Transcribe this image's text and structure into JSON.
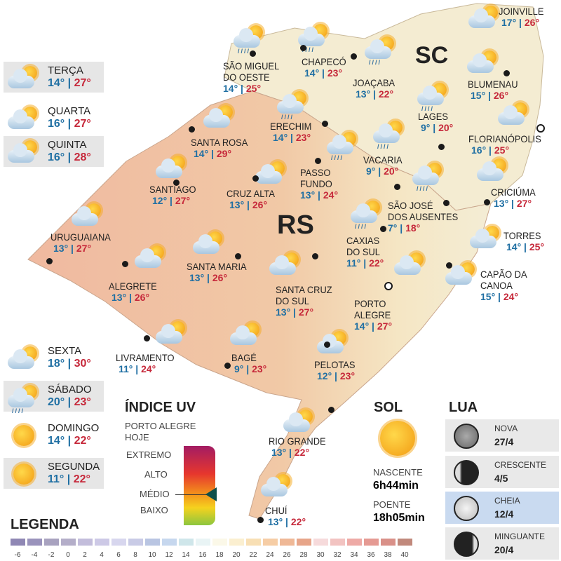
{
  "regions": {
    "sc": "SC",
    "rs": "RS"
  },
  "cities": [
    {
      "name": "SÃO MIGUEL",
      "name2": "DO OESTE",
      "min": "14°",
      "max": "25°",
      "icon": "sun-cloud-rain"
    },
    {
      "name": "CHAPECÓ",
      "min": "14°",
      "max": "23°",
      "icon": "sun-cloud-rain"
    },
    {
      "name": "JOAÇABA",
      "min": "13°",
      "max": "22°",
      "icon": "sun-cloud-rain"
    },
    {
      "name": "JOINVILLE",
      "min": "17°",
      "max": "26°",
      "icon": "sun-cloud"
    },
    {
      "name": "BLUMENAU",
      "min": "15°",
      "max": "26°",
      "icon": "sun-cloud"
    },
    {
      "name": "LAGES",
      "min": "9°",
      "max": "20°",
      "icon": "sun-cloud-rain"
    },
    {
      "name": "FLORIANÓPOLIS",
      "min": "16°",
      "max": "25°",
      "icon": "sun-cloud"
    },
    {
      "name": "ERECHIM",
      "min": "14°",
      "max": "23°",
      "icon": "sun-cloud-rain"
    },
    {
      "name": "SANTA ROSA",
      "min": "14°",
      "max": "29°",
      "icon": "sun-cloud"
    },
    {
      "name": "PASSO",
      "name2": "FUNDO",
      "min": "13°",
      "max": "24°",
      "icon": "sun-cloud-rain"
    },
    {
      "name": "VACARIA",
      "min": "9°",
      "max": "20°",
      "icon": "sun-cloud-rain"
    },
    {
      "name": "CRUZ ALTA",
      "min": "13°",
      "max": "26°",
      "icon": "sun-cloud"
    },
    {
      "name": "SANTIAGO",
      "min": "12°",
      "max": "27°",
      "icon": "sun-cloud"
    },
    {
      "name": "SÃO JOSÉ",
      "name2": "DOS AUSENTES",
      "min": "7°",
      "max": "18°",
      "icon": "sun-cloud-rain"
    },
    {
      "name": "CRICIÚMA",
      "min": "13°",
      "max": "27°",
      "icon": "sun-cloud"
    },
    {
      "name": "CAXIAS",
      "name2": "DO SUL",
      "min": "11°",
      "max": "22°",
      "icon": "sun-cloud-rain"
    },
    {
      "name": "TORRES",
      "min": "14°",
      "max": "25°",
      "icon": "sun-cloud"
    },
    {
      "name": "URUGUAIANA",
      "min": "13°",
      "max": "27°",
      "icon": "sun-cloud"
    },
    {
      "name": "ALEGRETE",
      "min": "13°",
      "max": "26°",
      "icon": "sun-cloud"
    },
    {
      "name": "SANTA MARIA",
      "min": "13°",
      "max": "26°",
      "icon": "sun-cloud"
    },
    {
      "name": "SANTA CRUZ",
      "name2": "DO SUL",
      "min": "13°",
      "max": "27°",
      "icon": "sun-cloud"
    },
    {
      "name": "CAPÃO DA",
      "name2": "CANOA",
      "min": "15°",
      "max": "24°",
      "icon": "sun-cloud"
    },
    {
      "name": "PORTO",
      "name2": "ALEGRE",
      "min": "14°",
      "max": "27°",
      "icon": "sun-cloud"
    },
    {
      "name": "LIVRAMENTO",
      "min": "11°",
      "max": "24°",
      "icon": "sun-cloud"
    },
    {
      "name": "BAGÉ",
      "min": "9°",
      "max": "23°",
      "icon": "sun-cloud"
    },
    {
      "name": "PELOTAS",
      "min": "12°",
      "max": "23°",
      "icon": "sun-cloud"
    },
    {
      "name": "RIO GRANDE",
      "min": "13°",
      "max": "22°",
      "icon": "sun-cloud"
    },
    {
      "name": "CHUÍ",
      "min": "13°",
      "max": "22°",
      "icon": "sun-cloud"
    }
  ],
  "forecast": [
    {
      "day": "TERÇA",
      "min": "14°",
      "max": "27°",
      "icon": "sun-cloud"
    },
    {
      "day": "QUARTA",
      "min": "16°",
      "max": "27°",
      "icon": "sun-cloud"
    },
    {
      "day": "QUINTA",
      "min": "16°",
      "max": "28°",
      "icon": "sun-cloud"
    },
    {
      "day": "SEXTA",
      "min": "18°",
      "max": "30°",
      "icon": "sun-cloud"
    },
    {
      "day": "SÁBADO",
      "min": "20°",
      "max": "23°",
      "icon": "sun-cloud-rain"
    },
    {
      "day": "DOMINGO",
      "min": "14°",
      "max": "22°",
      "icon": "sun"
    },
    {
      "day": "SEGUNDA",
      "min": "11°",
      "max": "22°",
      "icon": "sun"
    }
  ],
  "uv": {
    "title": "ÍNDICE UV",
    "subtitle1": "PORTO ALEGRE",
    "subtitle2": "HOJE",
    "levels": [
      "EXTREMO",
      "ALTO",
      "MÉDIO",
      "BAIXO"
    ],
    "current": "MÉDIO"
  },
  "sol": {
    "title": "SOL",
    "rise_label": "NASCENTE",
    "rise": "6h44min",
    "set_label": "POENTE",
    "set": "18h05min"
  },
  "lua": {
    "title": "LUA",
    "phases": [
      {
        "name": "NOVA",
        "date": "27/4"
      },
      {
        "name": "CRESCENTE",
        "date": "4/5"
      },
      {
        "name": "CHEIA",
        "date": "12/4",
        "highlight": true
      },
      {
        "name": "MINGUANTE",
        "date": "20/4"
      }
    ]
  },
  "legend": {
    "title": "LEGENDA",
    "ticks": [
      "-6",
      "-4",
      "-2",
      "0",
      "2",
      "4",
      "6",
      "8",
      "10",
      "12",
      "14",
      "16",
      "18",
      "20",
      "22",
      "24",
      "26",
      "28",
      "30",
      "32",
      "34",
      "36",
      "38",
      "40"
    ],
    "colors": [
      "#8f87b4",
      "#9a93bc",
      "#a8a2bf",
      "#b4aec9",
      "#c3bddb",
      "#cdc9e6",
      "#d7d6ee",
      "#c9cbe6",
      "#b9c5e2",
      "#c6d7ee",
      "#cfe6ea",
      "#e9f4f5",
      "#fbf8e8",
      "#fbefd0",
      "#f8dfb4",
      "#f6cda5",
      "#efb896",
      "#e7a589",
      "#f6dadb",
      "#f2c3c1",
      "#eeaaa6",
      "#e59a93",
      "#d99088",
      "#c1897c"
    ]
  }
}
